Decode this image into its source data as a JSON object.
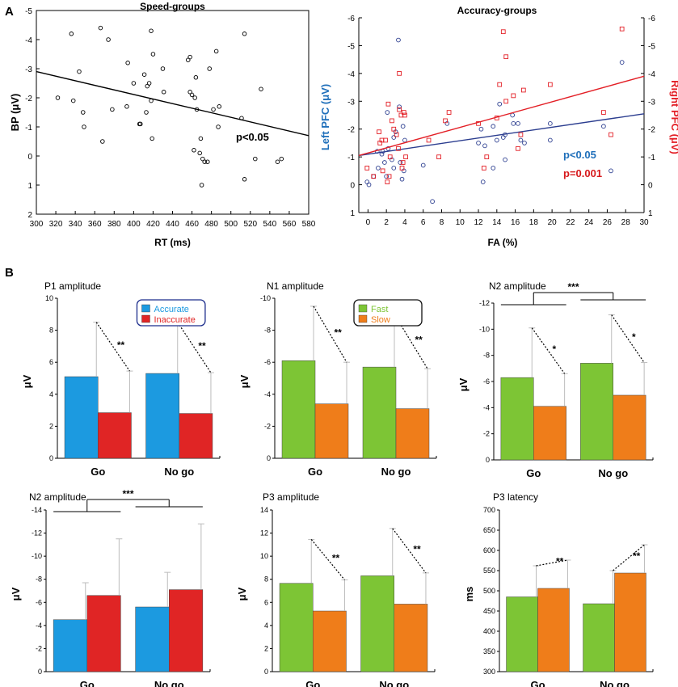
{
  "panel_labels": {
    "a": "A",
    "b": "B"
  },
  "chart_data": [
    {
      "id": "speed",
      "type": "scatter",
      "title": "Speed-groups",
      "xlabel": "RT (ms)",
      "ylabel": "BP (μV)",
      "xlim": [
        300,
        580
      ],
      "ylim": [
        -5,
        2
      ],
      "y_inverted": true,
      "xticks": [
        300,
        320,
        340,
        360,
        380,
        400,
        420,
        440,
        460,
        480,
        500,
        520,
        540,
        560,
        580
      ],
      "yticks": [
        -5,
        -4,
        -3,
        -2,
        -1,
        0,
        1,
        2
      ],
      "ytick_labels": [
        "-5",
        "-4",
        "-3",
        "-2",
        "-1",
        "0",
        "1",
        "2"
      ],
      "annotation": "p<0.05",
      "trend": {
        "x": [
          300,
          580
        ],
        "y": [
          -2.9,
          -0.7
        ]
      },
      "points": [
        [
          322,
          -2.0
        ],
        [
          336,
          -4.2
        ],
        [
          338,
          -1.9
        ],
        [
          344,
          -2.9
        ],
        [
          348,
          -1.5
        ],
        [
          349,
          -1.0
        ],
        [
          366,
          -4.4
        ],
        [
          368,
          -0.5
        ],
        [
          374,
          -4.0
        ],
        [
          378,
          -1.6
        ],
        [
          393,
          -1.7
        ],
        [
          394,
          -3.2
        ],
        [
          400,
          -2.5
        ],
        [
          406,
          -1.1
        ],
        [
          407,
          -1.1
        ],
        [
          411,
          -2.8
        ],
        [
          413,
          -1.5
        ],
        [
          414,
          -2.4
        ],
        [
          416,
          -2.5
        ],
        [
          418,
          -4.3
        ],
        [
          418,
          -1.9
        ],
        [
          419,
          -0.6
        ],
        [
          420,
          -3.5
        ],
        [
          430,
          -3.0
        ],
        [
          431,
          -2.2
        ],
        [
          456,
          -3.3
        ],
        [
          458,
          -3.4
        ],
        [
          458,
          -2.2
        ],
        [
          460,
          -2.1
        ],
        [
          462,
          -0.2
        ],
        [
          463,
          -2.0
        ],
        [
          464,
          -2.7
        ],
        [
          465,
          -1.6
        ],
        [
          468,
          -0.1
        ],
        [
          469,
          -0.6
        ],
        [
          470,
          1.0
        ],
        [
          471,
          0.1
        ],
        [
          473,
          0.2
        ],
        [
          476,
          0.2
        ],
        [
          478,
          -3.0
        ],
        [
          482,
          -1.6
        ],
        [
          485,
          -3.6
        ],
        [
          487,
          -1.0
        ],
        [
          488,
          -1.7
        ],
        [
          511,
          -1.3
        ],
        [
          514,
          -4.2
        ],
        [
          514,
          0.8
        ],
        [
          525,
          0.1
        ],
        [
          531,
          -2.3
        ],
        [
          548,
          0.2
        ],
        [
          552,
          0.1
        ]
      ]
    },
    {
      "id": "accuracy",
      "type": "scatter",
      "title": "Accuracy-groups",
      "xlabel": "FA (%)",
      "ylabel_left": "Left PFC (μV)",
      "ylabel_right": "Right PFC (μV)",
      "xlim": [
        -1,
        30
      ],
      "ylim": [
        -6,
        1
      ],
      "y_inverted": true,
      "xticks": [
        0,
        2,
        4,
        6,
        8,
        10,
        12,
        14,
        16,
        18,
        20,
        22,
        24,
        26,
        28,
        30
      ],
      "yticks": [
        -6,
        -5,
        -4,
        -3,
        -2,
        -1,
        0,
        1
      ],
      "ytick_labels": [
        "-6",
        "-5",
        "-4",
        "-3",
        "-2",
        "-1",
        "0",
        "1"
      ],
      "series": [
        {
          "name": "Left PFC",
          "marker": "circle",
          "color": "#2b3d8f",
          "trend": {
            "x": [
              -1,
              30
            ],
            "y": [
              -1.05,
              -2.55
            ]
          },
          "points": [
            [
              -0.1,
              -0.1
            ],
            [
              0.1,
              0.0
            ],
            [
              0.6,
              -0.3
            ],
            [
              1.0,
              -1.2
            ],
            [
              1.1,
              -0.6
            ],
            [
              1.5,
              -1.1
            ],
            [
              1.6,
              -1.2
            ],
            [
              1.8,
              -0.8
            ],
            [
              2.0,
              -0.3
            ],
            [
              2.1,
              -2.6
            ],
            [
              2.2,
              -1.3
            ],
            [
              2.6,
              -0.9
            ],
            [
              2.8,
              -1.7
            ],
            [
              2.8,
              -0.6
            ],
            [
              3.0,
              -1.9
            ],
            [
              3.3,
              -5.2
            ],
            [
              3.4,
              -2.8
            ],
            [
              3.5,
              -0.8
            ],
            [
              3.7,
              -0.2
            ],
            [
              3.8,
              -2.1
            ],
            [
              3.9,
              -0.5
            ],
            [
              4.0,
              -1.6
            ],
            [
              6.0,
              -0.7
            ],
            [
              7.0,
              0.6
            ],
            [
              8.6,
              -2.2
            ],
            [
              12.0,
              -1.5
            ],
            [
              12.3,
              -2.0
            ],
            [
              12.5,
              -0.1
            ],
            [
              12.7,
              -1.4
            ],
            [
              13.6,
              -2.1
            ],
            [
              13.6,
              -0.6
            ],
            [
              14.0,
              -1.6
            ],
            [
              14.3,
              -2.9
            ],
            [
              14.7,
              -1.7
            ],
            [
              14.9,
              -1.8
            ],
            [
              14.9,
              -0.9
            ],
            [
              15.7,
              -2.5
            ],
            [
              15.8,
              -2.2
            ],
            [
              16.3,
              -2.2
            ],
            [
              16.6,
              -1.6
            ],
            [
              17.0,
              -1.5
            ],
            [
              19.8,
              -2.2
            ],
            [
              19.8,
              -1.6
            ],
            [
              25.6,
              -2.1
            ],
            [
              26.4,
              -0.5
            ],
            [
              27.6,
              -4.4
            ]
          ]
        },
        {
          "name": "Right PFC",
          "marker": "square",
          "color": "#e31f26",
          "trend": {
            "x": [
              -1,
              30
            ],
            "y": [
              -1.05,
              -3.9
            ]
          },
          "points": [
            [
              -0.1,
              -0.6
            ],
            [
              0.6,
              -0.3
            ],
            [
              1.2,
              -1.9
            ],
            [
              1.3,
              -1.5
            ],
            [
              1.5,
              -1.6
            ],
            [
              1.6,
              -0.5
            ],
            [
              1.9,
              -1.6
            ],
            [
              2.1,
              -0.1
            ],
            [
              2.2,
              -2.9
            ],
            [
              2.3,
              -0.3
            ],
            [
              2.4,
              -1.0
            ],
            [
              2.6,
              -2.3
            ],
            [
              2.8,
              -2.0
            ],
            [
              3.1,
              -1.8
            ],
            [
              3.3,
              -1.3
            ],
            [
              3.4,
              -2.7
            ],
            [
              3.4,
              -4.0
            ],
            [
              3.6,
              -2.5
            ],
            [
              3.7,
              -0.6
            ],
            [
              3.8,
              -0.8
            ],
            [
              3.9,
              -2.6
            ],
            [
              4.0,
              -2.5
            ],
            [
              4.1,
              -1.0
            ],
            [
              6.6,
              -1.6
            ],
            [
              7.7,
              -1.0
            ],
            [
              8.4,
              -2.3
            ],
            [
              8.8,
              -2.6
            ],
            [
              12.0,
              -2.2
            ],
            [
              12.6,
              -0.6
            ],
            [
              12.9,
              -1.0
            ],
            [
              14.0,
              -2.4
            ],
            [
              14.3,
              -3.6
            ],
            [
              14.7,
              -5.5
            ],
            [
              15.0,
              -4.6
            ],
            [
              15.0,
              -3.0
            ],
            [
              15.8,
              -3.2
            ],
            [
              16.3,
              -1.3
            ],
            [
              16.6,
              -1.8
            ],
            [
              16.9,
              -3.4
            ],
            [
              19.8,
              -3.6
            ],
            [
              25.6,
              -2.6
            ],
            [
              26.4,
              -1.8
            ],
            [
              27.6,
              -5.6
            ]
          ]
        }
      ],
      "annotations": [
        {
          "text": "p<0.05",
          "color": "#1f6fba"
        },
        {
          "text": "p=0.001",
          "color": "#d7191c"
        }
      ]
    },
    {
      "id": "p1",
      "type": "bar",
      "title": "P1 amplitude",
      "ylabel": "μV",
      "ylim": [
        0,
        10
      ],
      "yticks": [
        0,
        2,
        4,
        6,
        8,
        10
      ],
      "ytick_labels": [
        "0",
        "2",
        "4",
        "6",
        "8",
        "10"
      ],
      "categories": [
        "Go",
        "No go"
      ],
      "series": [
        {
          "name": "Accurate",
          "color": "#1c9ae0",
          "values": [
            5.1,
            5.3
          ],
          "errors": [
            3.4,
            3.2
          ]
        },
        {
          "name": "Inaccurate",
          "color": "#e02525",
          "values": [
            2.85,
            2.8
          ],
          "errors": [
            2.6,
            2.55
          ]
        }
      ],
      "legend": true,
      "legend_color": "#1b2c8c",
      "pair_stars": [
        "**",
        "**"
      ],
      "group_star": null
    },
    {
      "id": "n1",
      "type": "bar",
      "title": "N1 amplitude",
      "ylabel": "μV",
      "ylim": [
        0,
        -10
      ],
      "yticks": [
        0,
        -2,
        -4,
        -6,
        -8,
        -10
      ],
      "ytick_labels": [
        "0",
        "-2",
        "-4",
        "-6",
        "-8",
        "-10"
      ],
      "categories": [
        "Go",
        "No go"
      ],
      "series": [
        {
          "name": "Fast",
          "color": "#7dc535",
          "values": [
            -6.1,
            -5.7
          ],
          "errors": [
            3.4,
            3.3
          ]
        },
        {
          "name": "Slow",
          "color": "#ef7d1a",
          "values": [
            -3.4,
            -3.1
          ],
          "errors": [
            2.6,
            2.5
          ]
        }
      ],
      "legend": true,
      "legend_color": "#111111",
      "pair_stars": [
        "**",
        "**"
      ],
      "group_star": null
    },
    {
      "id": "n2a",
      "type": "bar",
      "title": "N2 amplitude",
      "ylabel": "μV",
      "ylim": [
        0,
        -12
      ],
      "yticks": [
        0,
        -2,
        -4,
        -6,
        -8,
        -10,
        -12
      ],
      "ytick_labels": [
        "0",
        "-2",
        "-4",
        "-6",
        "-8",
        "-10",
        "-12"
      ],
      "categories": [
        "Go",
        "No go"
      ],
      "series": [
        {
          "name": "Fast",
          "color": "#7dc535",
          "values": [
            -6.3,
            -7.4
          ],
          "errors": [
            3.8,
            3.7
          ]
        },
        {
          "name": "Slow",
          "color": "#ef7d1a",
          "values": [
            -4.1,
            -4.95
          ],
          "errors": [
            2.5,
            2.5
          ]
        }
      ],
      "legend": false,
      "pair_stars": [
        "*",
        "*"
      ],
      "group_star": "***"
    },
    {
      "id": "n2b",
      "type": "bar",
      "title": "N2 amplitude",
      "ylabel": "μV",
      "ylim": [
        0,
        -14
      ],
      "yticks": [
        0,
        -2,
        -4,
        -6,
        -8,
        -10,
        -12,
        -14
      ],
      "ytick_labels": [
        "0",
        "-2",
        "-4",
        "-6",
        "-8",
        "-10",
        "-12",
        "-14"
      ],
      "categories": [
        "Go",
        "No go"
      ],
      "series": [
        {
          "name": "Accurate",
          "color": "#1c9ae0",
          "values": [
            -4.5,
            -5.6
          ],
          "errors": [
            3.2,
            3.0
          ]
        },
        {
          "name": "Inaccurate",
          "color": "#e02525",
          "values": [
            -6.6,
            -7.1
          ],
          "errors": [
            4.9,
            5.7
          ]
        }
      ],
      "legend": false,
      "pair_stars": null,
      "group_star": "***"
    },
    {
      "id": "p3a",
      "type": "bar",
      "title": "P3 amplitude",
      "ylabel": "μV",
      "ylim": [
        0,
        14
      ],
      "yticks": [
        0,
        2,
        4,
        6,
        8,
        10,
        12,
        14
      ],
      "ytick_labels": [
        "0",
        "2",
        "4",
        "6",
        "8",
        "10",
        "12",
        "14"
      ],
      "categories": [
        "Go",
        "No go"
      ],
      "series": [
        {
          "name": "Fast",
          "color": "#7dc535",
          "values": [
            7.65,
            8.3
          ],
          "errors": [
            3.8,
            4.1
          ]
        },
        {
          "name": "Slow",
          "color": "#ef7d1a",
          "values": [
            5.25,
            5.85
          ],
          "errors": [
            2.7,
            2.7
          ]
        }
      ],
      "legend": false,
      "pair_stars": [
        "**",
        "**"
      ],
      "group_star": null
    },
    {
      "id": "p3l",
      "type": "bar",
      "title": "P3 latency",
      "ylabel": "ms",
      "ylim": [
        300,
        700
      ],
      "yticks": [
        300,
        350,
        400,
        450,
        500,
        550,
        600,
        650,
        700
      ],
      "ytick_labels": [
        "300",
        "350",
        "400",
        "450",
        "500",
        "550",
        "600",
        "650",
        "700"
      ],
      "categories": [
        "Go",
        "No go"
      ],
      "series": [
        {
          "name": "Fast",
          "color": "#7dc535",
          "values": [
            485,
            468
          ],
          "errors": [
            77,
            82
          ]
        },
        {
          "name": "Slow",
          "color": "#ef7d1a",
          "values": [
            506,
            544
          ],
          "errors": [
            70,
            70
          ]
        }
      ],
      "legend": false,
      "pair_stars": [
        "**",
        "**"
      ],
      "group_star": null
    }
  ]
}
